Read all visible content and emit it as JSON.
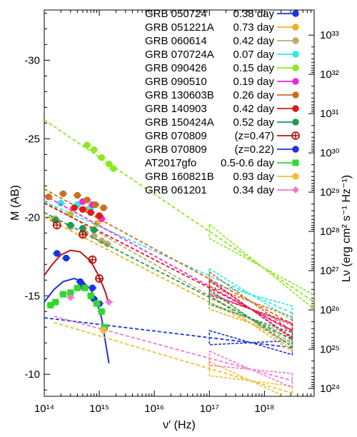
{
  "chart_data": {
    "type": "scatter",
    "title": "",
    "xlabel": "ν′ (Hz)",
    "ylabel_left": "M (AB)",
    "ylabel_right": "Lν (erg cm² s⁻¹ Hz⁻¹)",
    "x_scale": "log",
    "xlim": [
      100000000000000.0,
      8e+18
    ],
    "ylim_left": [
      -8.6,
      -33.2
    ],
    "right_axis_scale": "log",
    "x_ticks": [
      {
        "value": 100000000000000.0,
        "label": "10¹⁴"
      },
      {
        "value": 1000000000000000.0,
        "label": "10¹⁵"
      },
      {
        "value": 1e+16,
        "label": "10¹⁶"
      },
      {
        "value": 1e+17,
        "label": "10¹⁷"
      },
      {
        "value": 1e+18,
        "label": "10¹⁸"
      }
    ],
    "y_ticks_left": [
      {
        "value": -30,
        "label": "-30"
      },
      {
        "value": -25,
        "label": "-25"
      },
      {
        "value": -20,
        "label": "-20"
      },
      {
        "value": -15,
        "label": "-15"
      },
      {
        "value": -10,
        "label": "-10"
      }
    ],
    "y_ticks_right": [
      {
        "value": -31.6,
        "label": "10³³"
      },
      {
        "value": -29.1,
        "label": "10³²"
      },
      {
        "value": -26.6,
        "label": "10³¹"
      },
      {
        "value": -24.1,
        "label": "10³⁰"
      },
      {
        "value": -21.6,
        "label": "10²⁹"
      },
      {
        "value": -19.1,
        "label": "10²⁸"
      },
      {
        "value": -16.6,
        "label": "10²⁷"
      },
      {
        "value": -14.1,
        "label": "10²⁶"
      },
      {
        "value": -11.6,
        "label": "10²⁵"
      },
      {
        "value": -9.1,
        "label": "10²⁴"
      }
    ],
    "legend_position": "top-right",
    "series": [
      {
        "name": "GRB 050724",
        "time": "0.38 day",
        "color": "#1a35d8",
        "marker": "filled-circle",
        "line": [
          [
            100000000000000.0,
            -13.6
          ],
          [
            3.2e+18,
            -11.7
          ]
        ],
        "points": [
          [
            250000000000000.0,
            -17.4
          ],
          [
            450000000000000.0,
            -15.9
          ],
          [
            750000000000000.0,
            -15.5
          ],
          [
            1000000000000000.0,
            -14.5
          ]
        ]
      },
      {
        "name": "GRB 051221A",
        "time": "0.73 day",
        "color": "#e8b320",
        "marker": "filled-circle",
        "line": [
          [
            100000000000000.0,
            -20.0
          ],
          [
            3.2e+18,
            -11.9
          ]
        ],
        "points": [
          [
            150000000000000.0,
            -19.9
          ],
          [
            300000000000000.0,
            -20.2
          ],
          [
            600000000000000.0,
            -20.5
          ],
          [
            900000000000000.0,
            -19.6
          ]
        ]
      },
      {
        "name": "GRB 060614",
        "time": "0.42 day",
        "color": "#c0aa70",
        "marker": "filled-circle",
        "line": [
          [
            100000000000000.0,
            -21.0
          ],
          [
            3.2e+18,
            -12.0
          ]
        ],
        "points": [
          [
            160000000000000.0,
            -19.9
          ],
          [
            300000000000000.0,
            -19.4
          ],
          [
            550000000000000.0,
            -19.0
          ],
          [
            800000000000000.0,
            -18.8
          ],
          [
            1100000000000000.0,
            -18.5
          ],
          [
            1400000000000000.0,
            -18.3
          ]
        ]
      },
      {
        "name": "GRB 070724A",
        "time": "0.07 day",
        "color": "#2ee8ec",
        "marker": "filled-circle",
        "line": [
          [
            100000000000000.0,
            -21.0
          ],
          [
            3.2e+18,
            -13.9
          ]
        ],
        "points": [
          [
            200000000000000.0,
            -20.9
          ],
          [
            400000000000000.0,
            -20.8
          ],
          [
            700000000000000.0,
            -20.6
          ]
        ]
      },
      {
        "name": "GRB 090426",
        "time": "0.15 day",
        "color": "#8ce820",
        "marker": "filled-circle",
        "line": [
          [
            100000000000000.0,
            -26.2
          ],
          [
            8e+18,
            -14.6
          ]
        ],
        "points": [
          [
            600000000000000.0,
            -24.6
          ],
          [
            800000000000000.0,
            -24.3
          ],
          [
            1100000000000000.0,
            -23.8
          ],
          [
            1500000000000000.0,
            -23.4
          ],
          [
            1800000000000000.0,
            -23.1
          ]
        ]
      },
      {
        "name": "GRB 090510",
        "time": "0.19 day",
        "color": "#ec28d8",
        "marker": "filled-circle",
        "line": [
          [
            100000000000000.0,
            -21.4
          ],
          [
            3.2e+18,
            -12.7
          ]
        ],
        "points": [
          [
            500000000000000.0,
            -21.0
          ],
          [
            750000000000000.0,
            -20.8
          ],
          [
            1100000000000000.0,
            -19.9
          ]
        ]
      },
      {
        "name": "GRB 130603B",
        "time": "0.26 day",
        "color": "#c87020",
        "marker": "filled-circle",
        "line": [
          [
            100000000000000.0,
            -21.8
          ],
          [
            3.2e+18,
            -13.2
          ]
        ],
        "points": [
          [
            120000000000000.0,
            -21.3
          ],
          [
            220000000000000.0,
            -21.5
          ],
          [
            400000000000000.0,
            -21.4
          ],
          [
            600000000000000.0,
            -21.1
          ],
          [
            850000000000000.0,
            -20.8
          ],
          [
            1200000000000000.0,
            -20.6
          ]
        ]
      },
      {
        "name": "GRB 140903",
        "time": "0.42 day",
        "color": "#e01818",
        "marker": "filled-circle",
        "line": [
          [
            100000000000000.0,
            -20.9
          ],
          [
            3.2e+18,
            -12.8
          ]
        ],
        "points": [
          [
            350000000000000.0,
            -20.6
          ],
          [
            500000000000000.0,
            -20.5
          ],
          [
            700000000000000.0,
            -20.3
          ],
          [
            1000000000000000.0,
            -20.1
          ]
        ]
      },
      {
        "name": "GRB 150424A",
        "time": "0.52 day",
        "color": "#1a9a50",
        "marker": "filled-circle",
        "line": [
          [
            100000000000000.0,
            -20.3
          ],
          [
            3.2e+18,
            -12.2
          ]
        ],
        "points": [
          [
            160000000000000.0,
            -19.8
          ],
          [
            300000000000000.0,
            -19.5
          ],
          [
            500000000000000.0,
            -19.3
          ],
          [
            800000000000000.0,
            -19.2
          ]
        ]
      },
      {
        "name": "GRB 070809",
        "time": "(z=0.47)",
        "color": "#b81818",
        "marker": "open-circle-cross",
        "curve": [
          [
            100000000000000.0,
            -16.3
          ],
          [
            140000000000000.0,
            -17.0
          ],
          [
            200000000000000.0,
            -17.6
          ],
          [
            300000000000000.0,
            -17.9
          ],
          [
            450000000000000.0,
            -17.8
          ],
          [
            700000000000000.0,
            -17.2
          ],
          [
            1000000000000000.0,
            -16.2
          ],
          [
            1300000000000000.0,
            -15.2
          ],
          [
            1500000000000000.0,
            -14.4
          ]
        ],
        "points": [
          [
            170000000000000.0,
            -19.5
          ],
          [
            500000000000000.0,
            -18.9
          ],
          [
            750000000000000.0,
            -17.3
          ],
          [
            1000000000000000.0,
            -16.1
          ]
        ]
      },
      {
        "name": "GRB 070809",
        "time": "(z=0.22)",
        "color": "#1a35d8",
        "marker": "filled-circle",
        "curve": [
          [
            100000000000000.0,
            -14.6
          ],
          [
            150000000000000.0,
            -15.4
          ],
          [
            220000000000000.0,
            -15.9
          ],
          [
            350000000000000.0,
            -16.1
          ],
          [
            500000000000000.0,
            -15.9
          ],
          [
            700000000000000.0,
            -15.4
          ],
          [
            900000000000000.0,
            -14.6
          ],
          [
            1100000000000000.0,
            -13.6
          ],
          [
            1300000000000000.0,
            -12.0
          ],
          [
            1500000000000000.0,
            -10.7
          ]
        ],
        "points": [
          [
            170000000000000.0,
            -17.7
          ],
          [
            500000000000000.0,
            -15.6
          ],
          [
            800000000000000.0,
            -14.8
          ]
        ]
      },
      {
        "name": "AT2017gfo",
        "time": "0.5-0.6 day",
        "color": "#30d830",
        "marker": "open-square",
        "points": [
          [
            130000000000000.0,
            -14.4
          ],
          [
            160000000000000.0,
            -14.6
          ],
          [
            220000000000000.0,
            -15.1
          ],
          [
            300000000000000.0,
            -15.2
          ],
          [
            400000000000000.0,
            -15.5
          ],
          [
            550000000000000.0,
            -15.5
          ],
          [
            700000000000000.0,
            -15.0
          ],
          [
            900000000000000.0,
            -14.5
          ],
          [
            1100000000000000.0,
            -14.0
          ],
          [
            1250000000000000.0,
            -13.0
          ]
        ]
      },
      {
        "name": "GRB 160821B",
        "time": "0.93 day",
        "color": "#f0c030",
        "marker": "filled-circle",
        "line": [
          [
            150000000000000.0,
            -13.3
          ],
          [
            3.2e+18,
            -8.8
          ]
        ],
        "points": [
          [
            1200000000000000.0,
            -12.8
          ]
        ]
      },
      {
        "name": "GRB 061201",
        "time": "0.34 day",
        "color": "#f07ad0",
        "marker": "filled-diamond",
        "line": [
          [
            150000000000000.0,
            -13.7
          ],
          [
            3.2e+18,
            -9.6
          ]
        ],
        "points": [
          [
            300000000000000.0,
            -14.9
          ],
          [
            1500000000000000.0,
            -14.6
          ]
        ]
      }
    ]
  }
}
